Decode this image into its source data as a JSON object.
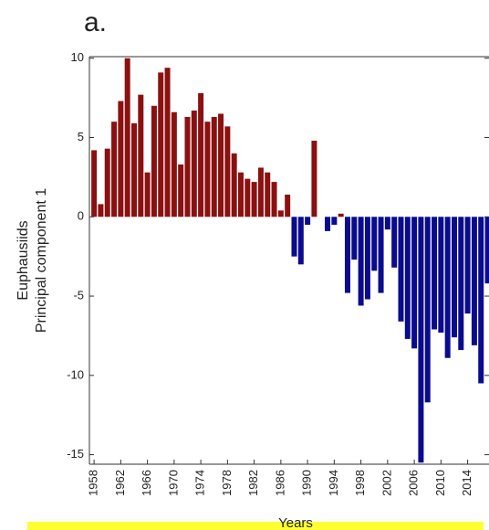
{
  "chart_data": {
    "type": "bar",
    "title": "a.",
    "ylabel": [
      "Euphausiids",
      "Principal component 1"
    ],
    "xlabel": "Years",
    "x": [
      1958,
      1959,
      1960,
      1961,
      1962,
      1963,
      1964,
      1965,
      1966,
      1967,
      1968,
      1969,
      1970,
      1971,
      1972,
      1973,
      1974,
      1975,
      1976,
      1977,
      1978,
      1979,
      1980,
      1981,
      1982,
      1983,
      1984,
      1985,
      1986,
      1987,
      1988,
      1989,
      1990,
      1991,
      1992,
      1993,
      1994,
      1995,
      1996,
      1997,
      1998,
      1999,
      2000,
      2001,
      2002,
      2003,
      2004,
      2005,
      2006,
      2007,
      2008,
      2009,
      2010,
      2011,
      2012,
      2013,
      2014,
      2015,
      2016,
      2017
    ],
    "values": [
      4.2,
      0.8,
      4.3,
      6.0,
      7.3,
      10.0,
      5.9,
      7.7,
      2.8,
      7.0,
      9.1,
      9.4,
      6.6,
      3.3,
      6.3,
      6.7,
      7.8,
      6.0,
      6.3,
      6.5,
      5.7,
      4.0,
      2.8,
      2.4,
      2.2,
      3.1,
      2.8,
      2.2,
      0.4,
      1.4,
      -2.5,
      -3.0,
      -0.5,
      4.8,
      0,
      -0.9,
      -0.5,
      0.2,
      -4.8,
      -2.7,
      -5.6,
      -5.2,
      -3.4,
      -4.8,
      -0.8,
      -3.2,
      -6.6,
      -7.7,
      -8.3,
      -15.5,
      -11.7,
      -7.1,
      -7.3,
      -8.9,
      -7.6,
      -8.4,
      -6.1,
      -8.1,
      -10.5,
      -4.2
    ],
    "positive_color": "#8b1111",
    "negative_color": "#0b0b8e",
    "xlim": [
      1957.3,
      2017.2
    ],
    "ylim": [
      -15.6,
      10.1
    ],
    "xticks": [
      1958,
      1962,
      1966,
      1970,
      1974,
      1978,
      1982,
      1986,
      1990,
      1994,
      1998,
      2002,
      2006,
      2010,
      2014
    ],
    "yticks": [
      -15,
      -10,
      -5,
      0,
      5,
      10
    ]
  }
}
